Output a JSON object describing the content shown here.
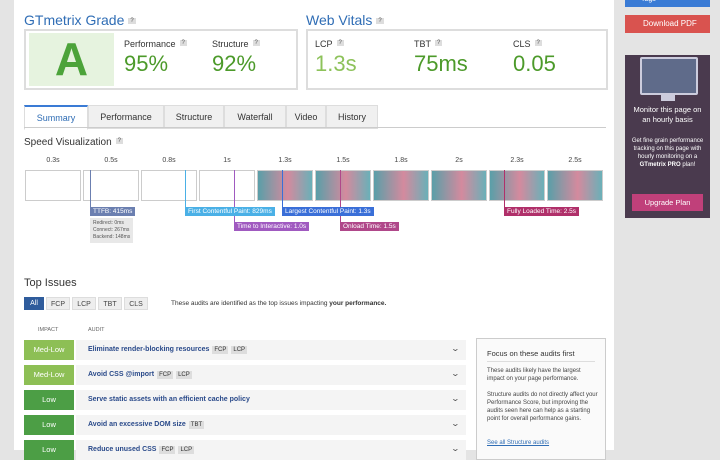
{
  "grade": {
    "title": "GTmetrix Grade",
    "help": "?",
    "letter": "A",
    "metrics": [
      {
        "label": "Performance",
        "value": "95%"
      },
      {
        "label": "Structure",
        "value": "92%"
      }
    ]
  },
  "web_vitals": {
    "title": "Web Vitals",
    "help": "?",
    "metrics": [
      {
        "label": "LCP",
        "value": "1.3s"
      },
      {
        "label": "TBT",
        "value": "75ms"
      },
      {
        "label": "CLS",
        "value": "0.05"
      }
    ]
  },
  "tabs": [
    "Summary",
    "Performance",
    "Structure",
    "Waterfall",
    "Video",
    "History"
  ],
  "speed": {
    "title": "Speed Visualization",
    "help": "?",
    "times": [
      "0.3s",
      "0.5s",
      "0.8s",
      "1s",
      "1.3s",
      "1.5s",
      "1.8s",
      "2s",
      "2.3s",
      "2.5s"
    ],
    "ttfb": {
      "label": "TTFB: 415ms",
      "details": [
        "Redirect: 0ms",
        "Connect: 267ms",
        "Backend: 148ms"
      ]
    },
    "markers": [
      "First Contentful Paint: 829ms",
      "Largest Contentful Paint: 1.3s",
      "Time to Interactive: 1.0s",
      "Onload Time: 1.5s",
      "Fully Loaded Time: 2.5s"
    ]
  },
  "top_issues": {
    "title": "Top Issues",
    "filters": [
      "All",
      "FCP",
      "LCP",
      "TBT",
      "CLS"
    ],
    "note": "These audits are identified as the top issues impacting",
    "note_bold": "your performance.",
    "columns": [
      "IMPACT",
      "AUDIT"
    ],
    "rows": [
      {
        "impact": "Med-Low",
        "audit": "Eliminate render-blocking resources",
        "tags": [
          "FCP",
          "LCP"
        ]
      },
      {
        "impact": "Med-Low",
        "audit": "Avoid CSS @import",
        "tags": [
          "FCP",
          "LCP"
        ]
      },
      {
        "impact": "Low",
        "audit": "Serve static assets with an efficient cache policy",
        "tags": []
      },
      {
        "impact": "Low",
        "audit": "Avoid an excessive DOM size",
        "tags": [
          "TBT"
        ]
      },
      {
        "impact": "Low",
        "audit": "Reduce unused CSS",
        "tags": [
          "FCP",
          "LCP"
        ]
      }
    ],
    "focus": {
      "title": "Focus on these audits first",
      "paragraphs": [
        "These audits likely have the largest impact on your page performance.",
        "Structure audits do not directly affect your Performance Score, but improving the audits seen here can help as a starting point for overall performance gains."
      ],
      "link": "See all Structure audits"
    }
  },
  "sidebar": {
    "tags": "Tags",
    "pdf": "Download PDF",
    "monitor_title": "Monitor this page on an hourly basis",
    "monitor_text": "Get fine grain performance tracking on this page with hourly monitoring on a",
    "monitor_bold": "GTmetrix PRO",
    "monitor_end": "plan!",
    "upgrade": "Upgrade Plan"
  }
}
